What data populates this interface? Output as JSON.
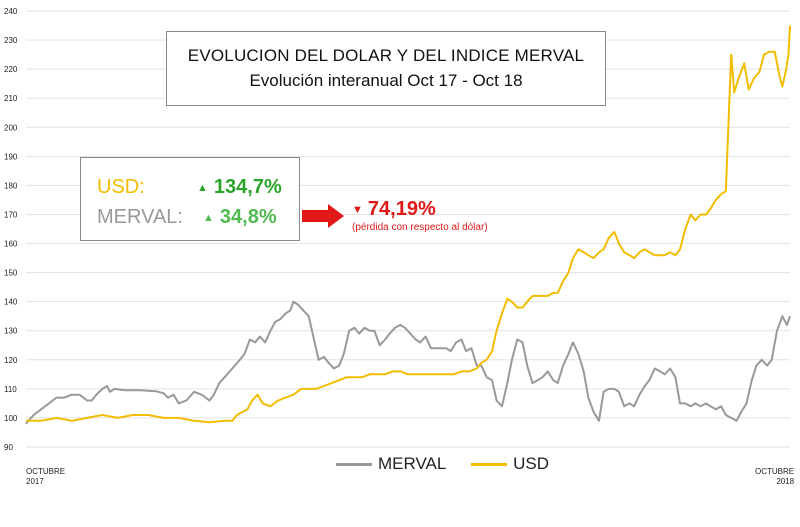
{
  "chart_data": {
    "type": "line",
    "title": "EVOLUCION DEL DOLAR Y DEL INDICE MERVAL",
    "subtitle": "Evolución interanual Oct 17 - Oct 18",
    "ylim": [
      90,
      240
    ],
    "yticks": [
      90,
      100,
      110,
      120,
      130,
      140,
      150,
      160,
      170,
      180,
      190,
      200,
      210,
      220,
      230,
      240
    ],
    "xlim": [
      0,
      100
    ],
    "x_start_label": [
      "OCTUBRE",
      "2017"
    ],
    "x_end_label": [
      "OCTUBRE",
      "2018"
    ],
    "grid": true,
    "legend_position": "bottom-center",
    "series": [
      {
        "name": "MERVAL",
        "color": "#999999",
        "points": [
          [
            0,
            98
          ],
          [
            1,
            101
          ],
          [
            2,
            103
          ],
          [
            3,
            105
          ],
          [
            4,
            107
          ],
          [
            5,
            107
          ],
          [
            6,
            108
          ],
          [
            7,
            108
          ],
          [
            8,
            106
          ],
          [
            8.6,
            106
          ],
          [
            9.2,
            108
          ],
          [
            10,
            110
          ],
          [
            10.6,
            111
          ],
          [
            11,
            109
          ],
          [
            11.6,
            110
          ],
          [
            13,
            109.5
          ],
          [
            15,
            109.5
          ],
          [
            17,
            109.2
          ],
          [
            18,
            108.5
          ],
          [
            18.6,
            107
          ],
          [
            19.3,
            108
          ],
          [
            20,
            105
          ],
          [
            21,
            106
          ],
          [
            22,
            109
          ],
          [
            23,
            108
          ],
          [
            24,
            106
          ],
          [
            24.6,
            108
          ],
          [
            25.3,
            112
          ],
          [
            26,
            114
          ],
          [
            27,
            117
          ],
          [
            28,
            120
          ],
          [
            28.6,
            122
          ],
          [
            29.3,
            127
          ],
          [
            30,
            126
          ],
          [
            30.6,
            128
          ],
          [
            31.3,
            126
          ],
          [
            32,
            130
          ],
          [
            32.6,
            133
          ],
          [
            33.3,
            134
          ],
          [
            34,
            136
          ],
          [
            34.6,
            137
          ],
          [
            35,
            140
          ],
          [
            35.6,
            139
          ],
          [
            36.3,
            137
          ],
          [
            37,
            135
          ],
          [
            37.6,
            128
          ],
          [
            38.3,
            120
          ],
          [
            39,
            121
          ],
          [
            39.6,
            119
          ],
          [
            40.3,
            117
          ],
          [
            41,
            118
          ],
          [
            41.6,
            122
          ],
          [
            42.3,
            130
          ],
          [
            43,
            131
          ],
          [
            43.6,
            129
          ],
          [
            44.3,
            131
          ],
          [
            45,
            130
          ],
          [
            45.6,
            130
          ],
          [
            46.3,
            125
          ],
          [
            47,
            127
          ],
          [
            47.6,
            129
          ],
          [
            48.3,
            131
          ],
          [
            49,
            132
          ],
          [
            49.6,
            131
          ],
          [
            50.3,
            129
          ],
          [
            51,
            127
          ],
          [
            51.6,
            126
          ],
          [
            52.3,
            128
          ],
          [
            53,
            124
          ],
          [
            53.6,
            124
          ],
          [
            54.3,
            124
          ],
          [
            55,
            124
          ],
          [
            55.6,
            123
          ],
          [
            56.3,
            126
          ],
          [
            57,
            127
          ],
          [
            57.6,
            123
          ],
          [
            58.3,
            124
          ],
          [
            59,
            118
          ],
          [
            59.6,
            118
          ],
          [
            60.3,
            114
          ],
          [
            61,
            113
          ],
          [
            61.6,
            106
          ],
          [
            62.3,
            104
          ],
          [
            63,
            112
          ],
          [
            63.6,
            120
          ],
          [
            64.3,
            127
          ],
          [
            65,
            126
          ],
          [
            65.6,
            118
          ],
          [
            66.3,
            112
          ],
          [
            67,
            113
          ],
          [
            67.6,
            114
          ],
          [
            68.3,
            116
          ],
          [
            69,
            113
          ],
          [
            69.6,
            112
          ],
          [
            70.3,
            118
          ],
          [
            71,
            122
          ],
          [
            71.6,
            126
          ],
          [
            72.3,
            122
          ],
          [
            73,
            116
          ],
          [
            73.6,
            107
          ],
          [
            74.3,
            102
          ],
          [
            75,
            99
          ],
          [
            75.6,
            109
          ],
          [
            76.3,
            110
          ],
          [
            77,
            110
          ],
          [
            77.6,
            109
          ],
          [
            78.3,
            104
          ],
          [
            79,
            105
          ],
          [
            79.6,
            104
          ],
          [
            80.3,
            108
          ],
          [
            81,
            111
          ],
          [
            81.6,
            113
          ],
          [
            82.3,
            117
          ],
          [
            83,
            116
          ],
          [
            83.6,
            115
          ],
          [
            84.3,
            117
          ],
          [
            85,
            114
          ],
          [
            85.6,
            105
          ],
          [
            86.3,
            105
          ],
          [
            87,
            104
          ],
          [
            87.6,
            105
          ],
          [
            88.3,
            104
          ],
          [
            89,
            105
          ],
          [
            89.6,
            104
          ],
          [
            90.3,
            103
          ],
          [
            91,
            104
          ],
          [
            91.6,
            101
          ],
          [
            92.3,
            100
          ],
          [
            93,
            99
          ],
          [
            93.6,
            102
          ],
          [
            94.3,
            105
          ],
          [
            95,
            113
          ],
          [
            95.6,
            118
          ],
          [
            96.3,
            120
          ],
          [
            97,
            118
          ],
          [
            97.6,
            120
          ],
          [
            98.3,
            130
          ],
          [
            99,
            135
          ],
          [
            99.6,
            132
          ],
          [
            100,
            135
          ]
        ]
      },
      {
        "name": "USD",
        "color": "#f2bd00",
        "points": [
          [
            0,
            99
          ],
          [
            2,
            99
          ],
          [
            4,
            100
          ],
          [
            6,
            99
          ],
          [
            8,
            100
          ],
          [
            10,
            101
          ],
          [
            12,
            100
          ],
          [
            14,
            101
          ],
          [
            16,
            101
          ],
          [
            18,
            100
          ],
          [
            20,
            100
          ],
          [
            22,
            99
          ],
          [
            24,
            98.5
          ],
          [
            26,
            99
          ],
          [
            27,
            99
          ],
          [
            27.6,
            101
          ],
          [
            28.3,
            102
          ],
          [
            29,
            103
          ],
          [
            29.6,
            106
          ],
          [
            30.3,
            108
          ],
          [
            31,
            105
          ],
          [
            32,
            104
          ],
          [
            33,
            106
          ],
          [
            34,
            107
          ],
          [
            35,
            108
          ],
          [
            36,
            110
          ],
          [
            37,
            110
          ],
          [
            38,
            110
          ],
          [
            39,
            111
          ],
          [
            40,
            112
          ],
          [
            41,
            113
          ],
          [
            42,
            114
          ],
          [
            43,
            114
          ],
          [
            44,
            114
          ],
          [
            45,
            115
          ],
          [
            46,
            115
          ],
          [
            47,
            115
          ],
          [
            48,
            116
          ],
          [
            49,
            116
          ],
          [
            50,
            115
          ],
          [
            51,
            115
          ],
          [
            52,
            115
          ],
          [
            53,
            115
          ],
          [
            54,
            115
          ],
          [
            55,
            115
          ],
          [
            56,
            115
          ],
          [
            57,
            116
          ],
          [
            58,
            116
          ],
          [
            59,
            117
          ],
          [
            59.6,
            119
          ],
          [
            60.3,
            120
          ],
          [
            61,
            123
          ],
          [
            61.6,
            130
          ],
          [
            62.3,
            136
          ],
          [
            63,
            141
          ],
          [
            63.6,
            140
          ],
          [
            64.3,
            138
          ],
          [
            65,
            138
          ],
          [
            65.6,
            140
          ],
          [
            66.3,
            142
          ],
          [
            67,
            142
          ],
          [
            67.6,
            142
          ],
          [
            68.3,
            142
          ],
          [
            69,
            143
          ],
          [
            69.6,
            143
          ],
          [
            70.3,
            147
          ],
          [
            71,
            150
          ],
          [
            71.6,
            155
          ],
          [
            72.3,
            158
          ],
          [
            73,
            157
          ],
          [
            73.6,
            156
          ],
          [
            74.3,
            155
          ],
          [
            75,
            157
          ],
          [
            75.6,
            158
          ],
          [
            76.3,
            162
          ],
          [
            77,
            164
          ],
          [
            77.6,
            160
          ],
          [
            78.3,
            157
          ],
          [
            79,
            156
          ],
          [
            79.6,
            155
          ],
          [
            80.3,
            157
          ],
          [
            81,
            158
          ],
          [
            81.6,
            157
          ],
          [
            82.3,
            156
          ],
          [
            83,
            156
          ],
          [
            83.6,
            156
          ],
          [
            84.3,
            157
          ],
          [
            85,
            156
          ],
          [
            85.6,
            158
          ],
          [
            86.3,
            165
          ],
          [
            87,
            170
          ],
          [
            87.6,
            168
          ],
          [
            88.3,
            170
          ],
          [
            89,
            170
          ],
          [
            89.6,
            172
          ],
          [
            90.3,
            175
          ],
          [
            91,
            177
          ],
          [
            91.6,
            178
          ],
          [
            92.3,
            225
          ],
          [
            92.7,
            212
          ],
          [
            93.3,
            217
          ],
          [
            94,
            222
          ],
          [
            94.6,
            213
          ],
          [
            95.3,
            217
          ],
          [
            96,
            219
          ],
          [
            96.6,
            225
          ],
          [
            97.3,
            226
          ],
          [
            98,
            226
          ],
          [
            98.6,
            218
          ],
          [
            99,
            214
          ],
          [
            99.5,
            220
          ],
          [
            99.8,
            225
          ],
          [
            100,
            235
          ]
        ]
      }
    ]
  },
  "stats": {
    "usd": {
      "label": "USD:",
      "value": "134,7%",
      "label_color": "#f2bd00",
      "value_color": "#2aa52a"
    },
    "merval": {
      "label": "MERVAL:",
      "value": "34,8%",
      "label_color": "#999999",
      "value_color": "#4fba4f"
    }
  },
  "loss": {
    "value": "74,19%",
    "note": "(pérdida con respecto al dólar)",
    "color": "#e01818"
  },
  "legend": [
    {
      "name": "MERVAL",
      "color": "#999999"
    },
    {
      "name": "USD",
      "color": "#f2bd00"
    }
  ]
}
